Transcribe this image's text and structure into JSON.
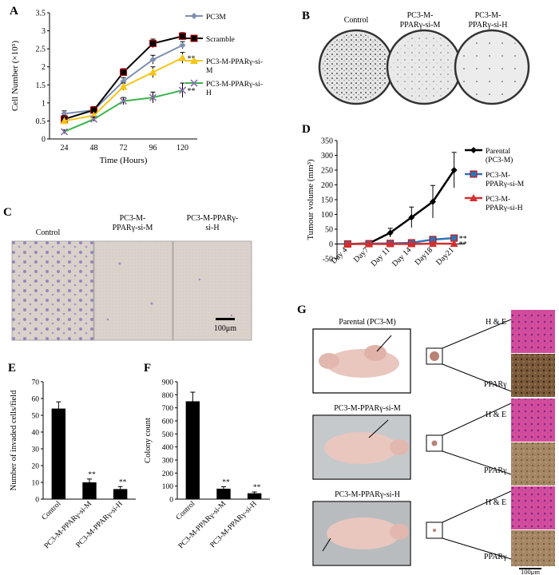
{
  "panel_labels": {
    "A": "A",
    "B": "B",
    "C": "C",
    "D": "D",
    "E": "E",
    "F": "F",
    "G": "G"
  },
  "sig_marker": "**",
  "colors": {
    "pc3m": "#7f8fb0",
    "scramble": "#000000",
    "si_m_a": "#f5c518",
    "si_h_a": "#3cb44b",
    "parental": "#000000",
    "si_m_d": "#2e75b6",
    "si_h_d": "#d32f2f",
    "he_stain": "#d44c9c",
    "ppar_stain": "#7a5a3a",
    "ppar_stain_h": "#a58664",
    "mouse": "#e9c7bf",
    "dish_bg": "#d8d8d8",
    "invasion_bg": "#d9cfc9"
  },
  "chart_data": [
    {
      "id": "A",
      "type": "line",
      "ylabel": "Cell Number (×10⁵)",
      "xlabel": "Time (Hours)",
      "categories": [
        "24",
        "48",
        "72",
        "96",
        "120"
      ],
      "ylim": [
        0,
        3.5
      ],
      "yticks": [
        "0",
        "0.5",
        "1",
        "1.5",
        "2",
        "2.5",
        "3",
        "3.5"
      ],
      "series": [
        {
          "name": "PC3M",
          "values": [
            0.7,
            0.8,
            1.6,
            2.2,
            2.6
          ],
          "errors": [
            0.08,
            0.08,
            0.1,
            0.12,
            0.1
          ]
        },
        {
          "name": "Scramble",
          "values": [
            0.55,
            0.8,
            1.85,
            2.65,
            2.85
          ],
          "errors": [
            0.1,
            0.1,
            0.1,
            0.12,
            0.1
          ]
        },
        {
          "name": "PC3-M-PPARγ-si-M",
          "values": [
            0.5,
            0.65,
            1.45,
            1.85,
            2.25
          ],
          "errors": [
            0.08,
            0.08,
            0.1,
            0.15,
            0.15
          ]
        },
        {
          "name": "PC3-M-PPARγ-si-H",
          "values": [
            0.2,
            0.55,
            1.05,
            1.15,
            1.35
          ],
          "errors": [
            0.05,
            0.06,
            0.1,
            0.15,
            0.2
          ]
        }
      ]
    },
    {
      "id": "D",
      "type": "line",
      "ylabel": "Tumour volume (mm³)",
      "categories": [
        "Day 4",
        "Day7",
        "Day 11",
        "Day 14",
        "Day18",
        "Day21"
      ],
      "ylim": [
        -50,
        350
      ],
      "yticks": [
        "-50",
        "0",
        "50",
        "100",
        "150",
        "200",
        "250",
        "300",
        "350"
      ],
      "series": [
        {
          "name": "Parental (PC3-M)",
          "values": [
            0,
            2,
            38,
            90,
            143,
            250
          ],
          "errors": [
            0,
            1,
            15,
            35,
            55,
            60
          ]
        },
        {
          "name": "PC3-M-PPARγ-si-M",
          "values": [
            0,
            1,
            2,
            4,
            15,
            20
          ],
          "errors": [
            0,
            0,
            1,
            1,
            3,
            5
          ]
        },
        {
          "name": "PC3-M-PPARγ-si-H",
          "values": [
            0,
            0,
            0,
            0,
            1,
            1
          ],
          "errors": [
            0,
            0,
            0,
            0,
            0,
            0
          ]
        }
      ]
    },
    {
      "id": "E",
      "type": "bar",
      "ylabel": "Number of invaded cells/field",
      "categories": [
        "Control",
        "PC3-M-PPARγ-si-M",
        "PC3-M-PPARγ-si-H"
      ],
      "values": [
        54,
        10,
        6
      ],
      "errors": [
        4,
        2,
        1.5
      ],
      "ylim": [
        0,
        70
      ],
      "yticks": [
        "0",
        "10",
        "20",
        "30",
        "40",
        "50",
        "60",
        "70"
      ]
    },
    {
      "id": "F",
      "type": "bar",
      "ylabel": "Colony count",
      "categories": [
        "Control",
        "PC3-M-PPARγ-si-M",
        "PC3-M-PPARγ-si-H"
      ],
      "values": [
        750,
        80,
        45
      ],
      "errors": [
        70,
        15,
        10
      ],
      "ylim": [
        0,
        900
      ],
      "yticks": [
        "0",
        "100",
        "200",
        "300",
        "400",
        "500",
        "600",
        "700",
        "800",
        "900"
      ]
    }
  ],
  "panel_b": {
    "labels": [
      "Control",
      "PC3-M-",
      "PPARγ-si-M",
      "PC3-M-",
      "PPARγ-si-H"
    ]
  },
  "panel_c": {
    "labels": [
      "Control",
      "PC3-M-",
      "PPARγ-si-M",
      "PC3-M-PPARγ-",
      "si-H"
    ],
    "scale": "100μm"
  },
  "panel_g": {
    "rows": [
      {
        "title": "Parental (PC3-M)",
        "he": "H & E",
        "ppar": "PPARγ"
      },
      {
        "title": "PC3-M-PPARγ-si-M",
        "he": "H & E",
        "ppar": "PPARγ"
      },
      {
        "title": "PC3-M-PPARγ-si-H",
        "he": "H & E",
        "ppar": "PPARγ"
      }
    ],
    "scale": "100μm"
  }
}
